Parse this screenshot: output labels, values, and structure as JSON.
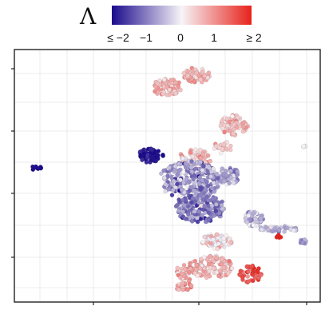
{
  "chart_data": {
    "type": "scatter",
    "title": "",
    "xlabel": "",
    "ylabel": "",
    "grid": true,
    "axis_ticks_labeled": false,
    "legend": {
      "title": "Λ",
      "placement": "top-center",
      "kind": "continuous-colorbar",
      "tick_labels": [
        "≤ −2",
        "−1",
        "0",
        "1",
        "≥ 2"
      ],
      "tick_values": [
        -2,
        -1,
        0,
        1,
        2
      ],
      "range": [
        -2,
        2
      ],
      "colors": {
        "low": "#1a0a8c",
        "mid": "#f7f4f7",
        "high": "#e8221b"
      }
    },
    "xlim": [
      0,
      11
    ],
    "ylim": [
      0,
      10
    ],
    "clusters": [
      {
        "label": "",
        "cx": 0.8,
        "cy": 5.3,
        "rx": 0.18,
        "ry": 0.1,
        "n": 10,
        "value_mean": -2.0,
        "value_sd": 0.05
      },
      {
        "label": "",
        "cx": 5.5,
        "cy": 8.5,
        "rx": 0.55,
        "ry": 0.35,
        "n": 80,
        "value_mean": 0.6,
        "value_sd": 0.25
      },
      {
        "label": "",
        "cx": 6.6,
        "cy": 9.0,
        "rx": 0.55,
        "ry": 0.3,
        "n": 70,
        "value_mean": 0.6,
        "value_sd": 0.3
      },
      {
        "label": "",
        "cx": 7.9,
        "cy": 7.0,
        "rx": 0.5,
        "ry": 0.4,
        "n": 90,
        "value_mean": 0.5,
        "value_sd": 0.25
      },
      {
        "label": "",
        "cx": 7.5,
        "cy": 6.1,
        "rx": 0.35,
        "ry": 0.25,
        "n": 25,
        "value_mean": 0.4,
        "value_sd": 0.25
      },
      {
        "label": "",
        "cx": 6.5,
        "cy": 5.7,
        "rx": 0.6,
        "ry": 0.35,
        "n": 80,
        "value_mean": 0.5,
        "value_sd": 0.3
      },
      {
        "label": "",
        "cx": 4.9,
        "cy": 5.8,
        "rx": 0.45,
        "ry": 0.28,
        "n": 70,
        "value_mean": -1.9,
        "value_sd": 0.15
      },
      {
        "label": "",
        "cx": 6.3,
        "cy": 4.8,
        "rx": 1.1,
        "ry": 0.8,
        "n": 280,
        "value_mean": -0.8,
        "value_sd": 0.4
      },
      {
        "label": "",
        "cx": 7.7,
        "cy": 5.0,
        "rx": 0.4,
        "ry": 0.35,
        "n": 60,
        "value_mean": -0.7,
        "value_sd": 0.3
      },
      {
        "label": "",
        "cx": 6.7,
        "cy": 3.7,
        "rx": 0.9,
        "ry": 0.55,
        "n": 170,
        "value_mean": -1.0,
        "value_sd": 0.35
      },
      {
        "label": "",
        "cx": 8.6,
        "cy": 3.3,
        "rx": 0.35,
        "ry": 0.3,
        "n": 55,
        "value_mean": -0.5,
        "value_sd": 0.3
      },
      {
        "label": "",
        "cx": 9.5,
        "cy": 2.9,
        "rx": 0.7,
        "ry": 0.12,
        "n": 40,
        "value_mean": -0.5,
        "value_sd": 0.3
      },
      {
        "label": "",
        "cx": 10.3,
        "cy": 2.4,
        "rx": 0.22,
        "ry": 0.12,
        "n": 10,
        "value_mean": -0.8,
        "value_sd": 0.2
      },
      {
        "label": "",
        "cx": 9.5,
        "cy": 2.6,
        "rx": 0.1,
        "ry": 0.06,
        "n": 6,
        "value_mean": 2.0,
        "value_sd": 0.05
      },
      {
        "label": "",
        "cx": 7.3,
        "cy": 2.4,
        "rx": 0.6,
        "ry": 0.3,
        "n": 50,
        "value_mean": 0.2,
        "value_sd": 0.35
      },
      {
        "label": "",
        "cx": 7.1,
        "cy": 1.4,
        "rx": 0.8,
        "ry": 0.45,
        "n": 120,
        "value_mean": 0.6,
        "value_sd": 0.3
      },
      {
        "label": "",
        "cx": 8.5,
        "cy": 1.1,
        "rx": 0.4,
        "ry": 0.35,
        "n": 50,
        "value_mean": 1.6,
        "value_sd": 0.3
      },
      {
        "label": "",
        "cx": 6.3,
        "cy": 1.2,
        "rx": 0.5,
        "ry": 0.4,
        "n": 50,
        "value_mean": 0.7,
        "value_sd": 0.3
      },
      {
        "label": "",
        "cx": 6.1,
        "cy": 0.6,
        "rx": 0.3,
        "ry": 0.15,
        "n": 20,
        "value_mean": 0.7,
        "value_sd": 0.3
      },
      {
        "label": "",
        "cx": 10.4,
        "cy": 6.2,
        "rx": 0.1,
        "ry": 0.08,
        "n": 4,
        "value_mean": 0.0,
        "value_sd": 0.1
      }
    ]
  }
}
